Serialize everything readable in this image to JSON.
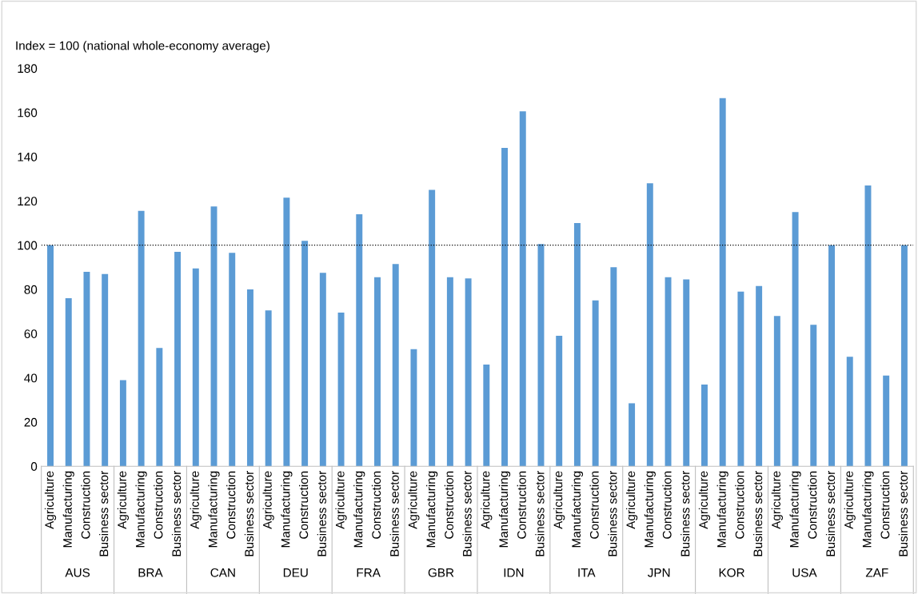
{
  "chart_data": {
    "type": "bar",
    "ylabel": "Index = 100 (national whole-economy average)",
    "categories": [
      "Agriculture",
      "Manufacturing",
      "Construction",
      "Business sector",
      "Agriculture",
      "Manufacturing",
      "Construction",
      "Business sector",
      "Agriculture",
      "Manufacturing",
      "Construction",
      "Business sector",
      "Agriculture",
      "Manufacturing",
      "Construction",
      "Business sector",
      "Agriculture",
      "Manufacturing",
      "Construction",
      "Business sector",
      "Agriculture",
      "Manufacturing",
      "Construction",
      "Business sector",
      "Agriculture",
      "Manufacturing",
      "Construction",
      "Business sector",
      "Agriculture",
      "Manufacturing",
      "Construction",
      "Business sector",
      "Agriculture",
      "Manufacturing",
      "Construction",
      "Business sector",
      "Agriculture",
      "Manufacturing",
      "Construction",
      "Business sector",
      "Agriculture",
      "Manufacturing",
      "Construction",
      "Business sector",
      "Agriculture",
      "Manufacturing",
      "Construction",
      "Business sector"
    ],
    "values": [
      100,
      76,
      88,
      87,
      39,
      115.5,
      53.5,
      97,
      89.5,
      117.5,
      96.5,
      80,
      70.5,
      121.5,
      102,
      87.5,
      69.5,
      114,
      85.5,
      91.5,
      53,
      125,
      85.5,
      85,
      46,
      144,
      160.5,
      100.5,
      59,
      110,
      75,
      90,
      28.5,
      128,
      85.5,
      84.5,
      37,
      166.5,
      79,
      81.5,
      68,
      115,
      64,
      100,
      49.5,
      127,
      41,
      100
    ],
    "color": "#5b9bd5",
    "annotations": [
      "AUS",
      "BRA",
      "CAN",
      "DEU",
      "FRA",
      "GBR",
      "IDN",
      "ITA",
      "JPN",
      "KOR",
      "USA",
      "ZAF"
    ],
    "ylim": [
      0,
      180
    ],
    "yticks": [
      0,
      20,
      40,
      60,
      80,
      100,
      120,
      140,
      160,
      180
    ],
    "ref_lines": [
      {
        "axis": "y",
        "value": 100,
        "color": "#000000",
        "line_style": "dotted"
      }
    ],
    "grid": false
  }
}
